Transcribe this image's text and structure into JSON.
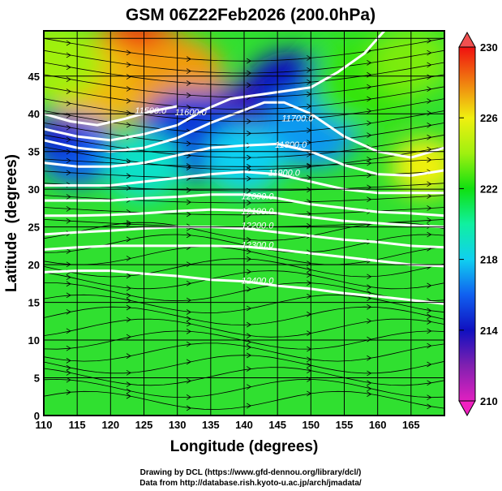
{
  "chart_data": {
    "type": "heatmap",
    "title": "GSM 06Z22Feb2026 (200.0hPa)",
    "xlabel": "Longitude (degrees)",
    "ylabel": "Latitude  (degrees)",
    "xlim": [
      110,
      170
    ],
    "ylim": [
      0,
      51
    ],
    "xticks": [
      "110",
      "115",
      "120",
      "125",
      "130",
      "135",
      "140",
      "145",
      "150",
      "155",
      "160",
      "165"
    ],
    "xtick_values": [
      110,
      115,
      120,
      125,
      130,
      135,
      140,
      145,
      150,
      155,
      160,
      165
    ],
    "yticks": [
      "0",
      "5",
      "10",
      "15",
      "20",
      "25",
      "30",
      "35",
      "40",
      "45"
    ],
    "ytick_values": [
      0,
      5,
      10,
      15,
      20,
      25,
      30,
      35,
      40,
      45
    ],
    "grid": true,
    "colorbar": {
      "ticks": [
        "230",
        "226",
        "222",
        "218",
        "214",
        "210"
      ],
      "tick_values": [
        230,
        226,
        222,
        218,
        214,
        210
      ],
      "range": [
        210,
        230
      ],
      "stops": [
        {
          "v": 210,
          "c": "#e020c0"
        },
        {
          "v": 212,
          "c": "#8020b0"
        },
        {
          "v": 214,
          "c": "#1010c0"
        },
        {
          "v": 216,
          "c": "#1060f0"
        },
        {
          "v": 218,
          "c": "#10d0f0"
        },
        {
          "v": 220,
          "c": "#10f0a0"
        },
        {
          "v": 222,
          "c": "#10e010"
        },
        {
          "v": 224,
          "c": "#a0f010"
        },
        {
          "v": 226,
          "c": "#f0f010"
        },
        {
          "v": 228,
          "c": "#f08010"
        },
        {
          "v": 230,
          "c": "#f01010"
        }
      ]
    },
    "contour_labels": [
      {
        "text": "11500.0",
        "lon": 126,
        "lat": 40
      },
      {
        "text": "11600.0",
        "lon": 132,
        "lat": 39.8
      },
      {
        "text": "11700.0",
        "lon": 148,
        "lat": 39
      },
      {
        "text": "11800.0",
        "lon": 147,
        "lat": 35.5
      },
      {
        "text": "11900.0",
        "lon": 146,
        "lat": 31.8
      },
      {
        "text": "12000.0",
        "lon": 142,
        "lat": 28.7
      },
      {
        "text": "12100.0",
        "lon": 142,
        "lat": 26.7
      },
      {
        "text": "12200.0",
        "lon": 142,
        "lat": 24.8
      },
      {
        "text": "12300.0",
        "lon": 142,
        "lat": 22.2
      },
      {
        "text": "12400.0",
        "lon": 142,
        "lat": 17.5
      }
    ],
    "contours": [
      {
        "value": 11500,
        "points": [
          [
            110,
            40
          ],
          [
            114,
            39
          ],
          [
            118,
            38.5
          ],
          [
            122,
            39.3
          ],
          [
            126,
            40.3
          ],
          [
            130,
            41
          ]
        ]
      },
      {
        "value": 11600,
        "points": [
          [
            110,
            38
          ],
          [
            115,
            37
          ],
          [
            120,
            36.5
          ],
          [
            125,
            37.3
          ],
          [
            130,
            38.5
          ],
          [
            134,
            40.5
          ],
          [
            138,
            42
          ],
          [
            142,
            42.5
          ],
          [
            146,
            43
          ],
          [
            150,
            43.5
          ],
          [
            154,
            45.5
          ],
          [
            158,
            48
          ],
          [
            161,
            51
          ]
        ]
      },
      {
        "value": 11700,
        "points": [
          [
            110,
            36.5
          ],
          [
            115,
            35.5
          ],
          [
            120,
            35
          ],
          [
            125,
            35.5
          ],
          [
            130,
            36.8
          ],
          [
            135,
            38.8
          ],
          [
            140,
            40.5
          ],
          [
            143,
            41.5
          ],
          [
            146,
            41.5
          ],
          [
            150,
            40
          ],
          [
            155,
            37
          ],
          [
            160,
            35
          ],
          [
            165,
            34.2
          ],
          [
            170,
            35.5
          ]
        ]
      },
      {
        "value": 11800,
        "points": [
          [
            110,
            33.5
          ],
          [
            115,
            33
          ],
          [
            120,
            33
          ],
          [
            125,
            33.5
          ],
          [
            130,
            34.5
          ],
          [
            135,
            35.5
          ],
          [
            140,
            35.8
          ],
          [
            145,
            36
          ],
          [
            150,
            35
          ],
          [
            155,
            33.2
          ],
          [
            160,
            32
          ],
          [
            165,
            31.8
          ],
          [
            170,
            32.5
          ]
        ]
      },
      {
        "value": 11900,
        "points": [
          [
            110,
            30.5
          ],
          [
            115,
            30.5
          ],
          [
            120,
            30.5
          ],
          [
            125,
            31
          ],
          [
            130,
            31.5
          ],
          [
            135,
            32
          ],
          [
            140,
            32.3
          ],
          [
            145,
            32
          ],
          [
            150,
            31
          ],
          [
            155,
            30
          ],
          [
            160,
            29.5
          ],
          [
            165,
            29.5
          ],
          [
            170,
            29.5
          ]
        ]
      },
      {
        "value": 12000,
        "points": [
          [
            110,
            28.5
          ],
          [
            115,
            28.5
          ],
          [
            120,
            28.5
          ],
          [
            125,
            28.8
          ],
          [
            130,
            29
          ],
          [
            135,
            29.3
          ],
          [
            140,
            29.3
          ],
          [
            145,
            28.8
          ],
          [
            150,
            28
          ],
          [
            155,
            27.5
          ],
          [
            160,
            27
          ],
          [
            165,
            26.8
          ],
          [
            170,
            26.5
          ]
        ]
      },
      {
        "value": 12100,
        "points": [
          [
            110,
            26.5
          ],
          [
            115,
            26.5
          ],
          [
            120,
            26.6
          ],
          [
            125,
            26.8
          ],
          [
            130,
            27.1
          ],
          [
            135,
            27.3
          ],
          [
            140,
            27.2
          ],
          [
            145,
            26.8
          ],
          [
            150,
            26.3
          ],
          [
            155,
            25.8
          ],
          [
            160,
            25.5
          ],
          [
            165,
            25.2
          ],
          [
            170,
            25
          ]
        ]
      },
      {
        "value": 12200,
        "points": [
          [
            110,
            24
          ],
          [
            115,
            24.3
          ],
          [
            120,
            24.5
          ],
          [
            125,
            24.8
          ],
          [
            130,
            25
          ],
          [
            135,
            25
          ],
          [
            140,
            24.8
          ],
          [
            145,
            24.3
          ],
          [
            150,
            23.8
          ],
          [
            155,
            23.3
          ],
          [
            160,
            23
          ],
          [
            165,
            22.5
          ],
          [
            170,
            22.3
          ]
        ]
      },
      {
        "value": 12300,
        "points": [
          [
            110,
            22
          ],
          [
            115,
            22.3
          ],
          [
            120,
            22.5
          ],
          [
            125,
            22.5
          ],
          [
            130,
            22.5
          ],
          [
            135,
            22.5
          ],
          [
            140,
            22.4
          ],
          [
            145,
            22
          ],
          [
            150,
            21.5
          ],
          [
            155,
            21
          ],
          [
            160,
            20.5
          ],
          [
            165,
            20
          ],
          [
            170,
            19.8
          ]
        ]
      },
      {
        "value": 12400,
        "points": [
          [
            110,
            19
          ],
          [
            115,
            19.2
          ],
          [
            120,
            19.2
          ],
          [
            125,
            18.8
          ],
          [
            130,
            18.5
          ],
          [
            135,
            18
          ],
          [
            140,
            17.8
          ],
          [
            145,
            17.2
          ],
          [
            150,
            16.8
          ],
          [
            155,
            16.2
          ],
          [
            160,
            15.8
          ],
          [
            165,
            15.3
          ],
          [
            170,
            14.8
          ]
        ]
      }
    ],
    "temperature_field": [
      {
        "lon": 124,
        "lat": 46,
        "t": 229.5,
        "r": 9
      },
      {
        "lon": 118,
        "lat": 44,
        "t": 227,
        "r": 8
      },
      {
        "lon": 130,
        "lat": 45,
        "t": 227.5,
        "r": 7
      },
      {
        "lon": 112,
        "lat": 47,
        "t": 224,
        "r": 7
      },
      {
        "lon": 142,
        "lat": 41,
        "t": 211.5,
        "r": 5
      },
      {
        "lon": 140,
        "lat": 39,
        "t": 213,
        "r": 7
      },
      {
        "lon": 147,
        "lat": 43,
        "t": 214,
        "r": 7
      },
      {
        "lon": 132,
        "lat": 37,
        "t": 215,
        "r": 8
      },
      {
        "lon": 115,
        "lat": 35,
        "t": 216,
        "r": 6
      },
      {
        "lon": 112,
        "lat": 37,
        "t": 214.5,
        "r": 4
      },
      {
        "lon": 150,
        "lat": 38,
        "t": 217,
        "r": 7
      },
      {
        "lon": 158,
        "lat": 44,
        "t": 222.5,
        "r": 8
      },
      {
        "lon": 167,
        "lat": 33,
        "t": 226,
        "r": 5
      },
      {
        "lon": 165,
        "lat": 47,
        "t": 223.5,
        "r": 6
      },
      {
        "lon": 125,
        "lat": 33,
        "t": 219,
        "r": 6
      },
      {
        "lon": 140,
        "lat": 34,
        "t": 218,
        "r": 6
      }
    ]
  },
  "credits": {
    "line1": "Drawing by DCL (https://www.gfd-dennou.org/library/dcl/)",
    "line2": "Data from http://database.rish.kyoto-u.ac.jp/arch/jmadata/"
  }
}
